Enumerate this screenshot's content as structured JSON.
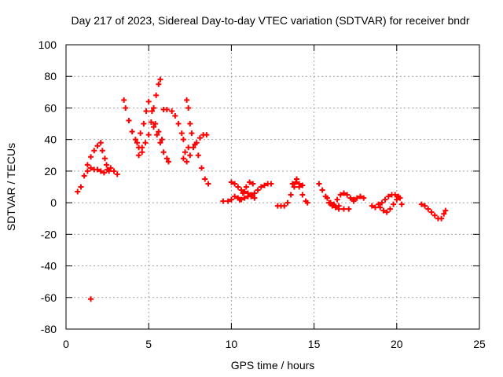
{
  "chart_data": {
    "type": "scatter",
    "title": "Day 217 of 2023, Sidereal Day-to-day VTEC variation (SDTVAR) for receiver bndr",
    "xlabel": "GPS time / hours",
    "ylabel": "SDTVAR / TECUs",
    "xlim": [
      0,
      25
    ],
    "ylim": [
      -80,
      100
    ],
    "xticks": [
      0,
      5,
      10,
      15,
      20,
      25
    ],
    "yticks": [
      -80,
      -60,
      -40,
      -20,
      0,
      20,
      40,
      60,
      80,
      100
    ],
    "grid": true,
    "marker": "+",
    "colors": {
      "series": "#ff0000",
      "grid": "#a0a0a0",
      "axis": "#000000"
    },
    "series": [
      {
        "name": "SDTVAR",
        "points": [
          [
            0.7,
            7
          ],
          [
            0.9,
            10
          ],
          [
            1.1,
            17
          ],
          [
            1.3,
            24
          ],
          [
            1.5,
            29
          ],
          [
            1.7,
            33
          ],
          [
            1.9,
            36
          ],
          [
            2.1,
            38
          ],
          [
            2.2,
            33
          ],
          [
            2.35,
            28
          ],
          [
            2.45,
            24
          ],
          [
            2.6,
            20
          ],
          [
            1.3,
            20
          ],
          [
            1.5,
            22
          ],
          [
            1.7,
            21
          ],
          [
            1.9,
            21
          ],
          [
            2.1,
            20
          ],
          [
            2.3,
            19
          ],
          [
            2.5,
            21
          ],
          [
            2.7,
            22
          ],
          [
            2.9,
            20
          ],
          [
            3.1,
            18
          ],
          [
            1.5,
            -61
          ],
          [
            3.5,
            65
          ],
          [
            3.6,
            60
          ],
          [
            3.8,
            52
          ],
          [
            4.0,
            45
          ],
          [
            4.2,
            40
          ],
          [
            4.4,
            35
          ],
          [
            4.6,
            32
          ],
          [
            4.3,
            38
          ],
          [
            4.5,
            44
          ],
          [
            4.7,
            50
          ],
          [
            4.85,
            58
          ],
          [
            5.0,
            64
          ],
          [
            5.2,
            58
          ],
          [
            5.4,
            50
          ],
          [
            5.6,
            45
          ],
          [
            5.8,
            40
          ],
          [
            4.4,
            30
          ],
          [
            4.6,
            35
          ],
          [
            4.8,
            38
          ],
          [
            5.0,
            43
          ],
          [
            5.15,
            51
          ],
          [
            5.3,
            60
          ],
          [
            5.45,
            68
          ],
          [
            5.6,
            75
          ],
          [
            5.7,
            78
          ],
          [
            5.3,
            48
          ],
          [
            5.5,
            43
          ],
          [
            5.7,
            38
          ],
          [
            5.9,
            32
          ],
          [
            6.1,
            28
          ],
          [
            6.2,
            26
          ],
          [
            5.9,
            59
          ],
          [
            6.1,
            59
          ],
          [
            6.4,
            58
          ],
          [
            6.6,
            55
          ],
          [
            6.8,
            50
          ],
          [
            7.0,
            44
          ],
          [
            7.1,
            40
          ],
          [
            7.1,
            28
          ],
          [
            7.3,
            26
          ],
          [
            7.5,
            30
          ],
          [
            7.7,
            35
          ],
          [
            7.9,
            38
          ],
          [
            8.1,
            41
          ],
          [
            8.3,
            43
          ],
          [
            8.5,
            43
          ],
          [
            7.3,
            65
          ],
          [
            7.4,
            60
          ],
          [
            7.5,
            50
          ],
          [
            7.6,
            44
          ],
          [
            7.8,
            37
          ],
          [
            8.0,
            30
          ],
          [
            8.2,
            22
          ],
          [
            8.4,
            15
          ],
          [
            8.6,
            12
          ],
          [
            7.2,
            32
          ],
          [
            7.4,
            35
          ],
          [
            9.5,
            1
          ],
          [
            9.8,
            1
          ],
          [
            10.0,
            2
          ],
          [
            10.2,
            4
          ],
          [
            10.4,
            3
          ],
          [
            10.6,
            2
          ],
          [
            10.8,
            3
          ],
          [
            11.0,
            4
          ],
          [
            11.2,
            5
          ],
          [
            10.0,
            13
          ],
          [
            10.2,
            12
          ],
          [
            10.4,
            10
          ],
          [
            10.6,
            8
          ],
          [
            10.8,
            7
          ],
          [
            11.0,
            6
          ],
          [
            11.2,
            4
          ],
          [
            11.4,
            3
          ],
          [
            10.5,
            2
          ],
          [
            10.7,
            6
          ],
          [
            10.9,
            10
          ],
          [
            11.1,
            13
          ],
          [
            11.3,
            12
          ],
          [
            11.4,
            6
          ],
          [
            11.6,
            8
          ],
          [
            11.8,
            10
          ],
          [
            12.0,
            11
          ],
          [
            12.2,
            12
          ],
          [
            12.4,
            12
          ],
          [
            12.8,
            -2
          ],
          [
            13.0,
            -2
          ],
          [
            13.2,
            -2
          ],
          [
            13.4,
            0
          ],
          [
            13.6,
            5
          ],
          [
            13.8,
            10
          ],
          [
            13.95,
            15
          ],
          [
            14.1,
            10
          ],
          [
            14.3,
            5
          ],
          [
            14.5,
            1
          ],
          [
            14.6,
            0
          ],
          [
            13.7,
            12
          ],
          [
            13.9,
            13
          ],
          [
            14.1,
            12
          ],
          [
            14.3,
            11
          ],
          [
            15.3,
            12
          ],
          [
            15.5,
            8
          ],
          [
            15.7,
            4
          ],
          [
            15.9,
            0
          ],
          [
            16.1,
            -2
          ],
          [
            16.3,
            -3
          ],
          [
            16.5,
            -4
          ],
          [
            15.8,
            3
          ],
          [
            16.0,
            0
          ],
          [
            16.2,
            -1
          ],
          [
            16.4,
            2
          ],
          [
            16.6,
            5
          ],
          [
            16.8,
            6
          ],
          [
            17.0,
            5
          ],
          [
            17.2,
            3
          ],
          [
            17.4,
            1
          ],
          [
            16.5,
            -2
          ],
          [
            16.8,
            -4
          ],
          [
            17.1,
            -4
          ],
          [
            17.4,
            2
          ],
          [
            17.6,
            3
          ],
          [
            17.8,
            4
          ],
          [
            18.0,
            3
          ],
          [
            18.5,
            -2
          ],
          [
            18.7,
            -3
          ],
          [
            18.9,
            -1
          ],
          [
            19.1,
            0
          ],
          [
            19.3,
            2
          ],
          [
            19.5,
            4
          ],
          [
            19.7,
            5
          ],
          [
            19.9,
            5
          ],
          [
            20.1,
            4
          ],
          [
            20.2,
            3
          ],
          [
            19.0,
            -3
          ],
          [
            19.2,
            -5
          ],
          [
            19.4,
            -6
          ],
          [
            19.6,
            -4
          ],
          [
            19.8,
            -1
          ],
          [
            20.0,
            2
          ],
          [
            20.3,
            -1
          ],
          [
            21.5,
            -1
          ],
          [
            21.7,
            -2
          ],
          [
            21.9,
            -4
          ],
          [
            22.1,
            -6
          ],
          [
            22.3,
            -8
          ],
          [
            22.5,
            -10
          ],
          [
            22.7,
            -10
          ],
          [
            22.85,
            -7
          ],
          [
            22.95,
            -5
          ]
        ]
      }
    ]
  }
}
